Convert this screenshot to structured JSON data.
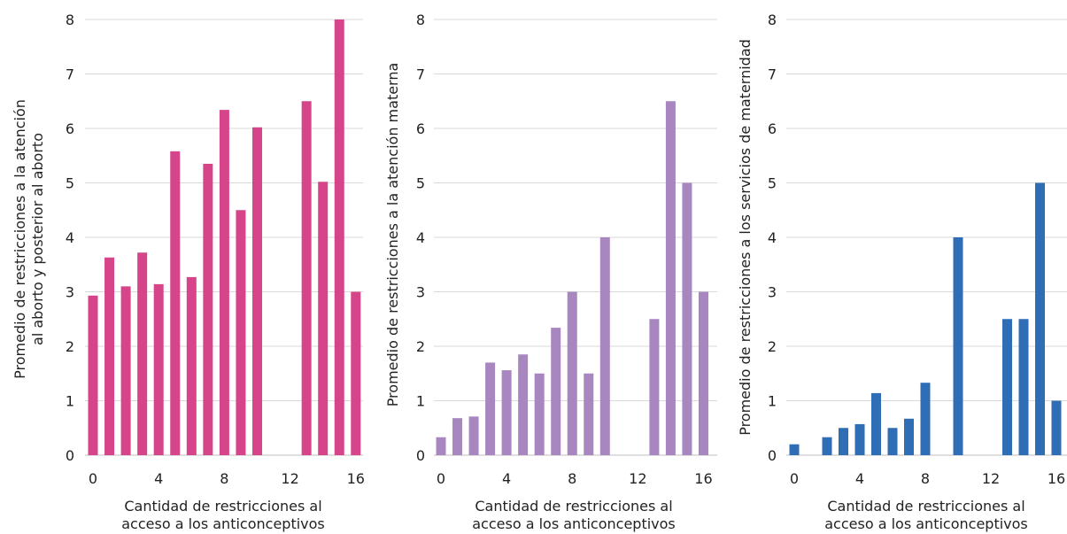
{
  "chart_data": [
    {
      "type": "bar",
      "color": "#d6458a",
      "ylabel_lines": [
        "Promedio de restricciones a la atención",
        "al aborto y posterior al aborto"
      ],
      "xlabel_lines": [
        "Cantidad de restricciones al",
        "acceso a los anticonceptivos"
      ],
      "x": [
        0,
        1,
        2,
        3,
        4,
        5,
        6,
        7,
        8,
        9,
        10,
        11,
        12,
        13,
        14,
        15,
        16
      ],
      "values": [
        2.93,
        3.63,
        3.1,
        3.72,
        3.14,
        5.58,
        3.27,
        5.35,
        6.34,
        4.5,
        6.02,
        0,
        0,
        6.5,
        5.02,
        8.0,
        3.0
      ],
      "xticks": [
        0,
        4,
        8,
        12,
        16
      ],
      "yticks": [
        0,
        1,
        2,
        3,
        4,
        5,
        6,
        7,
        8
      ],
      "ylim": [
        0,
        8
      ],
      "grid": true
    },
    {
      "type": "bar",
      "color": "#a886c0",
      "ylabel_lines": [
        "Promedio de restricciones a la atención materna"
      ],
      "xlabel_lines": [
        "Cantidad de restricciones al",
        "acceso a los anticonceptivos"
      ],
      "x": [
        0,
        1,
        2,
        3,
        4,
        5,
        6,
        7,
        8,
        9,
        10,
        11,
        12,
        13,
        14,
        15,
        16
      ],
      "values": [
        0.33,
        0.68,
        0.71,
        1.7,
        1.56,
        1.85,
        1.5,
        2.34,
        3.0,
        1.5,
        4.0,
        0,
        0,
        2.5,
        6.5,
        5.0,
        3.0
      ],
      "xticks": [
        0,
        4,
        8,
        12,
        16
      ],
      "yticks": [
        0,
        1,
        2,
        3,
        4,
        5,
        6,
        7,
        8
      ],
      "ylim": [
        0,
        8
      ],
      "grid": true
    },
    {
      "type": "bar",
      "color": "#2f6db5",
      "ylabel_lines": [
        "Promedio de restricciones a los servicios de maternidad"
      ],
      "xlabel_lines": [
        "Cantidad de restricciones al",
        "acceso a los anticonceptivos"
      ],
      "x": [
        0,
        1,
        2,
        3,
        4,
        5,
        6,
        7,
        8,
        9,
        10,
        11,
        12,
        13,
        14,
        15,
        16
      ],
      "values": [
        0.2,
        0,
        0.33,
        0.5,
        0.57,
        1.14,
        0.5,
        0.67,
        1.33,
        0,
        4.0,
        0,
        0,
        2.5,
        2.5,
        5.0,
        1.0
      ],
      "xticks": [
        0,
        4,
        8,
        12,
        16
      ],
      "yticks": [
        0,
        1,
        2,
        3,
        4,
        5,
        6,
        7,
        8
      ],
      "ylim": [
        0,
        8
      ],
      "grid": true
    }
  ]
}
